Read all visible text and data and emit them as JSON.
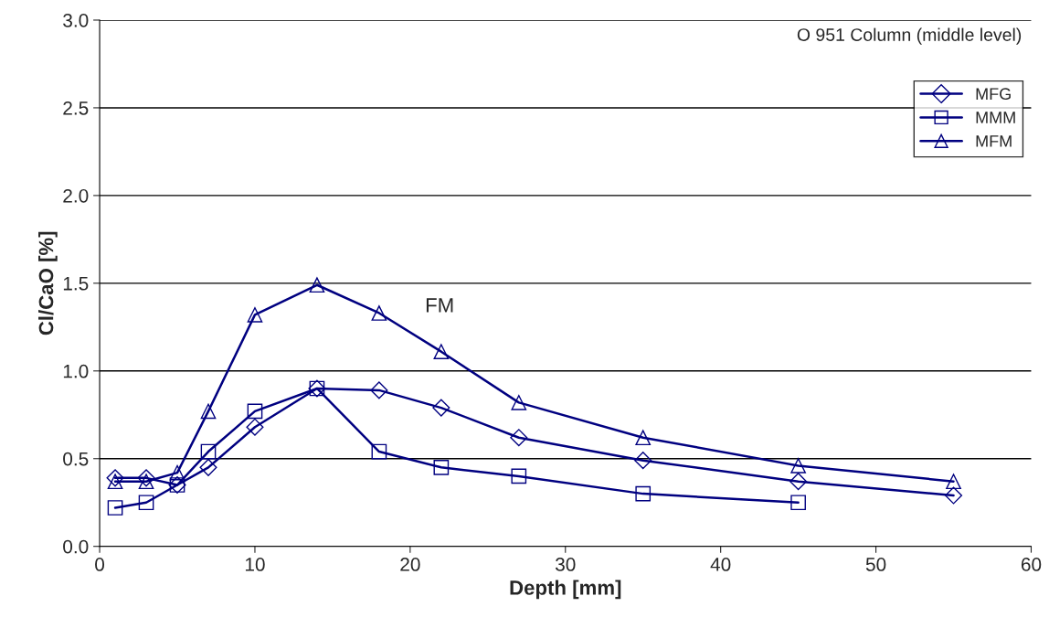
{
  "chart_data": {
    "type": "line",
    "xlabel": "Depth [mm]",
    "ylabel": "Cl/CaO [%]",
    "xlim": [
      0,
      60
    ],
    "xticks": [
      0,
      10,
      20,
      30,
      40,
      50,
      60
    ],
    "ylim": [
      0,
      3
    ],
    "yticks": [
      {
        "value": 0,
        "label": "0.0"
      },
      {
        "value": 0.5,
        "label": "0.5"
      },
      {
        "value": 1,
        "label": "1.0"
      },
      {
        "value": 1.5,
        "label": "1.5"
      },
      {
        "value": 2,
        "label": "2.0"
      },
      {
        "value": 2.5,
        "label": "2.5"
      },
      {
        "value": 3,
        "label": "3.0"
      }
    ],
    "grid": "y",
    "legend": "top right",
    "line_style": "solid",
    "annotations": [
      "O 951 Column (middle level)",
      "FM"
    ],
    "series": [
      {
        "name": "MFG",
        "color": "#000080",
        "marker": "diamond",
        "x": [
          1,
          3,
          5,
          7,
          10,
          14,
          18,
          22,
          27,
          35,
          45,
          55
        ],
        "values": [
          0.39,
          0.39,
          0.35,
          0.45,
          0.68,
          0.9,
          0.89,
          0.79,
          0.62,
          0.49,
          0.37,
          0.29
        ]
      },
      {
        "name": "MMM",
        "color": "#000080",
        "marker": "square",
        "x": [
          1,
          3,
          5,
          7,
          10,
          14,
          18,
          22,
          27,
          35,
          45
        ],
        "values": [
          0.22,
          0.25,
          0.35,
          0.54,
          0.77,
          0.9,
          0.54,
          0.45,
          0.4,
          0.3,
          0.25
        ]
      },
      {
        "name": "MFM",
        "color": "#000080",
        "marker": "triangle",
        "x": [
          1,
          3,
          5,
          7,
          10,
          14,
          18,
          22,
          27,
          35,
          45,
          55
        ],
        "values": [
          0.37,
          0.37,
          0.42,
          0.77,
          1.32,
          1.49,
          1.33,
          1.11,
          0.82,
          0.62,
          0.46,
          0.37
        ]
      }
    ]
  }
}
